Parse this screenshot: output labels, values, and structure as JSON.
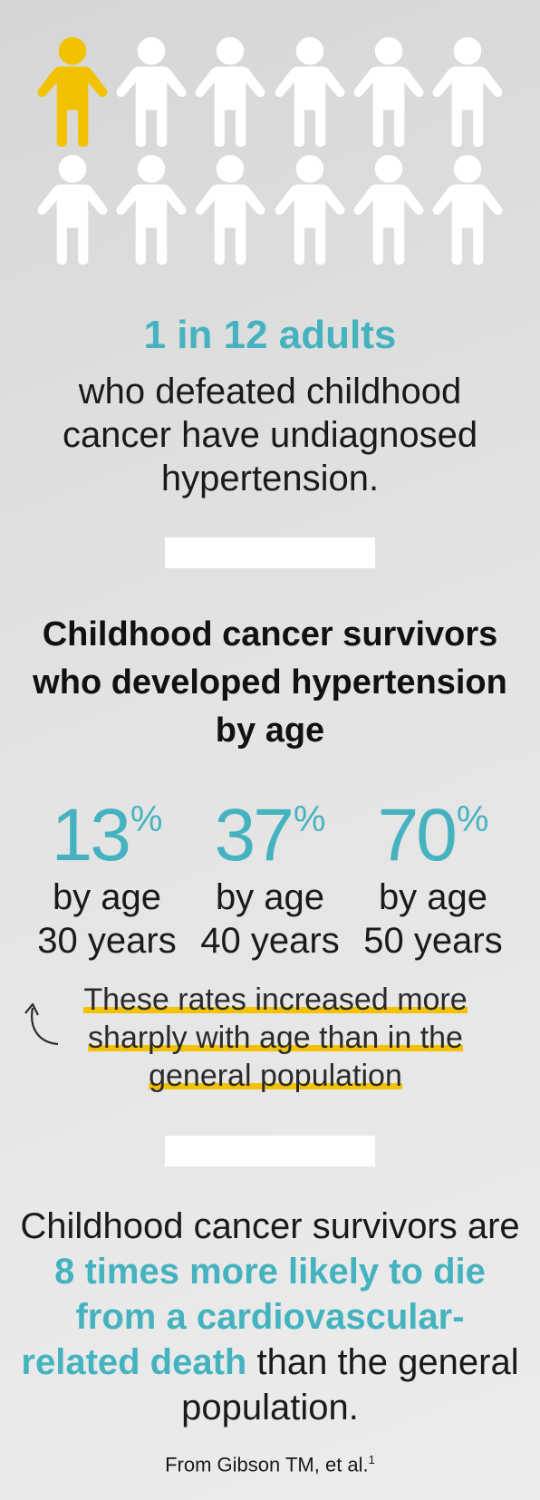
{
  "people_icons": {
    "total": 12,
    "highlighted": 1,
    "colors": {
      "highlighted": "#f2c200",
      "default": "#ffffff"
    },
    "icon": "person-icon"
  },
  "stat1": {
    "headline": "1 in 12 adults",
    "body": "who defeated childhood cancer have undiagnosed hypertension."
  },
  "section": {
    "title": "Childhood cancer survivors who developed hypertension by age"
  },
  "percentages": [
    {
      "value": "13",
      "sign": "%",
      "line1": "by age",
      "line2": "30 years"
    },
    {
      "value": "37",
      "sign": "%",
      "line1": "by age",
      "line2": "40 years"
    },
    {
      "value": "70",
      "sign": "%",
      "line1": "by age",
      "line2": "50 years"
    }
  ],
  "note": {
    "line1": "These rates increased more",
    "line2": "sharply with age than in the",
    "line3": "general population",
    "arrow_icon": "curved-arrow-up-icon"
  },
  "bottom": {
    "pre": "Childhood cancer survivors are ",
    "emphasis": "8 times more likely to die from a cardiovascular-related death",
    "post": " than the general population."
  },
  "citation": {
    "text": "From Gibson TM, et al.",
    "ref": "1"
  },
  "colors": {
    "teal": "#45b3bf",
    "yellow": "#f2c200",
    "text": "#1a1a1a"
  }
}
